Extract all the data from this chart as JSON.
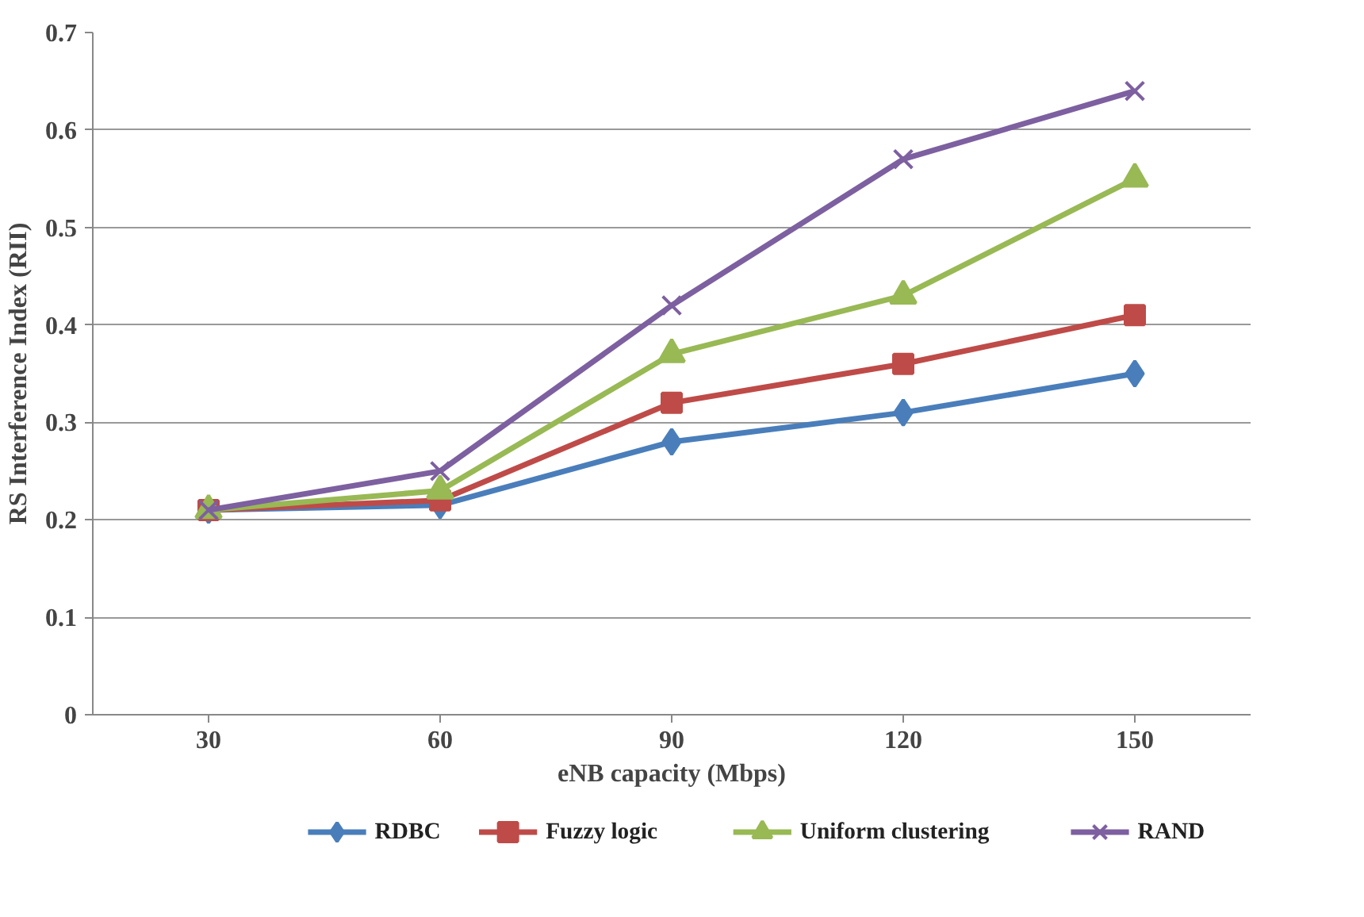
{
  "chart_data": {
    "type": "line",
    "xlabel": "eNB capacity (Mbps)",
    "ylabel": "RS Interference Index (RII)",
    "categories": [
      "30",
      "60",
      "90",
      "120",
      "150"
    ],
    "ylim": [
      0,
      0.7
    ],
    "yticks": [
      0,
      0.1,
      0.2,
      0.3,
      0.4,
      0.5,
      0.6,
      0.7
    ],
    "grid": "y",
    "legend": "bottom",
    "series": [
      {
        "name": "RDBC",
        "color": "#4a7ebb",
        "marker": "diamond",
        "values": [
          0.21,
          0.215,
          0.28,
          0.31,
          0.35
        ]
      },
      {
        "name": "Fuzzy logic",
        "color": "#be4b48",
        "marker": "square",
        "values": [
          0.21,
          0.22,
          0.32,
          0.36,
          0.41
        ]
      },
      {
        "name": "Uniform clustering",
        "color": "#98b954",
        "marker": "triangle",
        "values": [
          0.21,
          0.23,
          0.37,
          0.43,
          0.55
        ]
      },
      {
        "name": "RAND",
        "color": "#7d60a0",
        "marker": "x",
        "values": [
          0.21,
          0.25,
          0.42,
          0.57,
          0.64
        ]
      }
    ]
  }
}
